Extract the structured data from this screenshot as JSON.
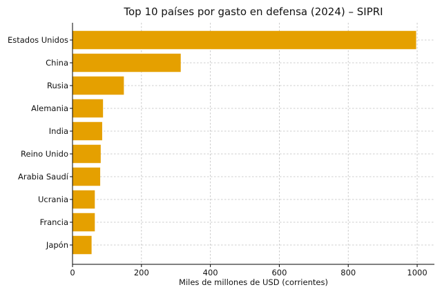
{
  "chart_data": {
    "type": "bar",
    "orientation": "horizontal",
    "title": "Top 10 países por gasto en defensa (2024) – SIPRI",
    "xlabel": "Miles de millones de USD (corrientes)",
    "ylabel": "",
    "categories": [
      "Estados Unidos",
      "China",
      "Rusia",
      "Alemania",
      "India",
      "Reino Unido",
      "Arabia Saudí",
      "Ucrania",
      "Francia",
      "Japón"
    ],
    "values": [
      997,
      314,
      149,
      88.5,
      86.1,
      81.8,
      80.3,
      64.7,
      64.7,
      55.3
    ],
    "xlim": [
      0,
      1050
    ],
    "xticks": [
      0,
      200,
      400,
      600,
      800,
      1000
    ],
    "bar_color": "#e5a000",
    "grid": true
  }
}
